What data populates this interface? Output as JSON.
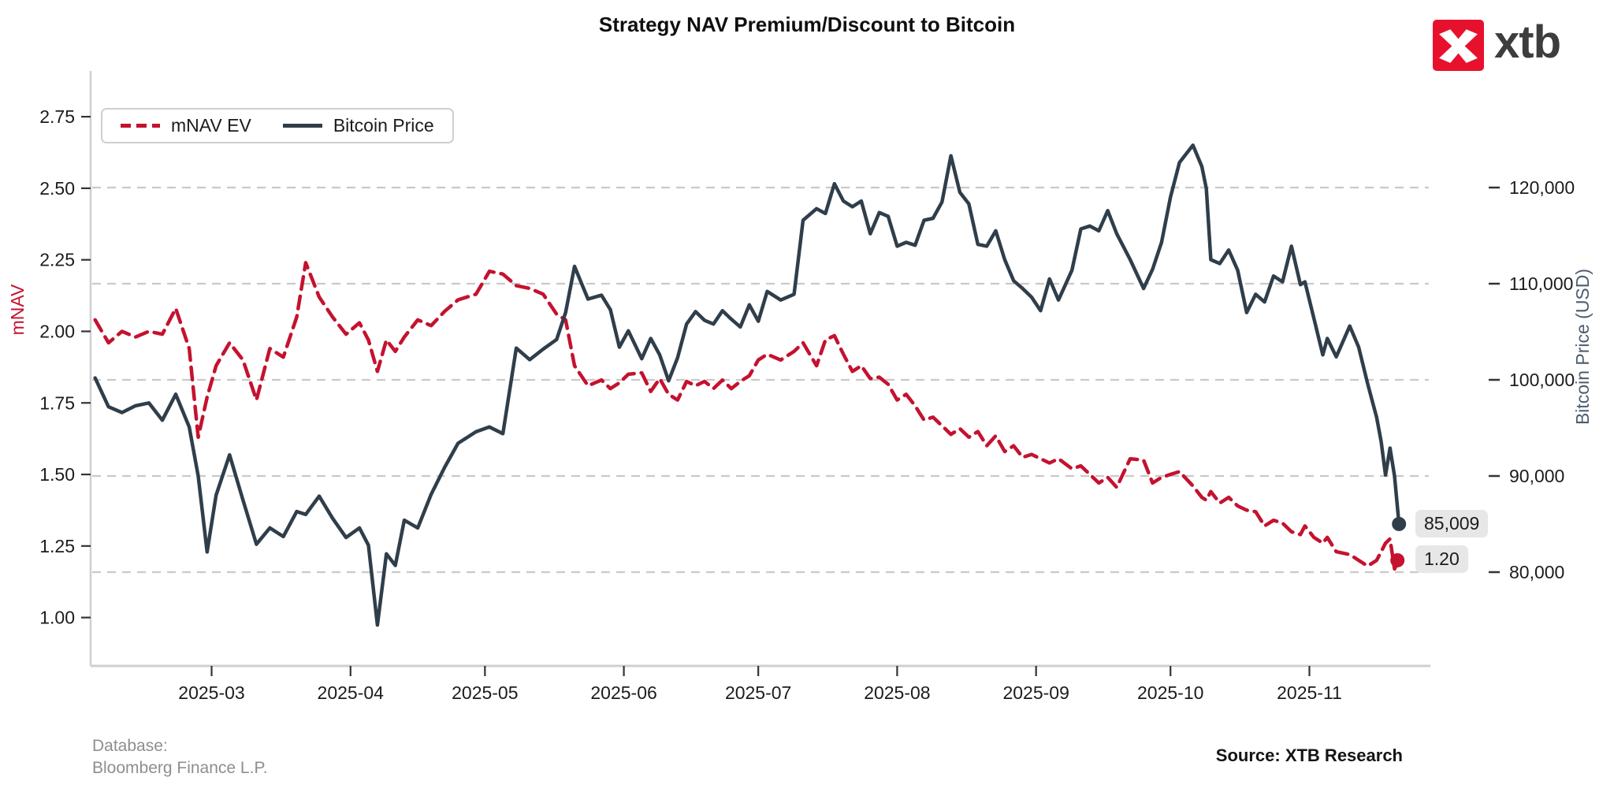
{
  "title": "Strategy NAV Premium/Discount to Bitcoin",
  "logo": {
    "text": "xtb",
    "square_color": "#e8112d",
    "text_color": "#3d3d3d"
  },
  "legend": {
    "mnav_label": "mNAV EV",
    "btc_label": "Bitcoin Price"
  },
  "annotations": {
    "btc_end_label": "85,009",
    "mnav_end_label": "1.20"
  },
  "footer": {
    "database_line1": "Database:",
    "database_line2": "Bloomberg Finance L.P.",
    "source": "Source: XTB Research"
  },
  "colors": {
    "mnav_line": "#c4122f",
    "btc_line": "#2f3e4a",
    "gridline": "#c9c9c9",
    "spine": "#cfcfcf",
    "tick_text": "#1c1c1c",
    "right_axis_title": "#4b5d6e",
    "annotation_bg": "#e7e7e7"
  },
  "chart_data": {
    "type": "line",
    "title": "Strategy NAV Premium/Discount to Bitcoin",
    "grid": "horizontal-dashed",
    "legend_position": "upper-left",
    "left_axis": {
      "title": "mNAV",
      "tick_values": [
        2.75,
        2.5,
        2.25,
        2.0,
        1.75,
        1.5,
        1.25,
        1.0
      ],
      "tick_labels": [
        "2.75",
        "2.50",
        "2.25",
        "2.00",
        "1.75",
        "1.50",
        "1.25",
        "1.00"
      ],
      "range": [
        0.831,
        2.91
      ]
    },
    "right_axis": {
      "title": "Bitcoin Price (USD)",
      "tick_values": [
        120000,
        110000,
        100000,
        90000,
        80000
      ],
      "tick_labels": [
        "120,000",
        "110,000",
        "100,000",
        "90,000",
        "80,000"
      ],
      "range": [
        70246,
        132131
      ]
    },
    "x_axis": {
      "tick_dates": [
        "2025-03-01",
        "2025-04-01",
        "2025-05-01",
        "2025-06-01",
        "2025-07-01",
        "2025-08-01",
        "2025-09-01",
        "2025-10-01",
        "2025-11-01"
      ],
      "tick_labels": [
        "2025-03",
        "2025-04",
        "2025-05",
        "2025-06",
        "2025-07",
        "2025-08",
        "2025-09",
        "2025-10",
        "2025-11"
      ],
      "range": [
        "2025-02-02",
        "2025-11-28"
      ]
    },
    "series": [
      {
        "name": "mNAV EV",
        "axis": "left",
        "style": "dashed",
        "color": "#c4122f",
        "end_value": 1.2
      },
      {
        "name": "Bitcoin Price",
        "axis": "right",
        "style": "solid",
        "color": "#2f3e4a",
        "end_value": 85009
      }
    ],
    "points": [
      [
        "2025-02-03",
        2.04,
        100200
      ],
      [
        "2025-02-06",
        1.96,
        97200
      ],
      [
        "2025-02-09",
        2.0,
        96600
      ],
      [
        "2025-02-12",
        1.98,
        97300
      ],
      [
        "2025-02-15",
        2.0,
        97600
      ],
      [
        "2025-02-18",
        1.99,
        95800
      ],
      [
        "2025-02-21",
        2.08,
        98500
      ],
      [
        "2025-02-24",
        1.94,
        95100
      ],
      [
        "2025-02-26",
        1.63,
        90000
      ],
      [
        "2025-02-28",
        1.77,
        82100
      ],
      [
        "2025-03-02",
        1.88,
        88000
      ],
      [
        "2025-03-05",
        1.96,
        92200
      ],
      [
        "2025-03-08",
        1.9,
        87500
      ],
      [
        "2025-03-11",
        1.76,
        82900
      ],
      [
        "2025-03-14",
        1.94,
        84600
      ],
      [
        "2025-03-17",
        1.91,
        83700
      ],
      [
        "2025-03-20",
        2.05,
        86300
      ],
      [
        "2025-03-22",
        2.24,
        86000
      ],
      [
        "2025-03-25",
        2.12,
        87900
      ],
      [
        "2025-03-28",
        2.05,
        85600
      ],
      [
        "2025-03-31",
        1.99,
        83600
      ],
      [
        "2025-04-03",
        2.03,
        84600
      ],
      [
        "2025-04-05",
        1.97,
        82800
      ],
      [
        "2025-04-07",
        1.86,
        74500
      ],
      [
        "2025-04-09",
        1.97,
        81900
      ],
      [
        "2025-04-11",
        1.93,
        80700
      ],
      [
        "2025-04-13",
        1.98,
        85400
      ],
      [
        "2025-04-16",
        2.04,
        84600
      ],
      [
        "2025-04-19",
        2.02,
        88100
      ],
      [
        "2025-04-22",
        2.07,
        90900
      ],
      [
        "2025-04-25",
        2.11,
        93400
      ],
      [
        "2025-04-29",
        2.13,
        94600
      ],
      [
        "2025-05-02",
        2.21,
        95100
      ],
      [
        "2025-05-05",
        2.2,
        94400
      ],
      [
        "2025-05-08",
        2.16,
        103300
      ],
      [
        "2025-05-11",
        2.15,
        102100
      ],
      [
        "2025-05-14",
        2.13,
        103200
      ],
      [
        "2025-05-17",
        2.06,
        104200
      ],
      [
        "2025-05-19",
        2.04,
        107000
      ],
      [
        "2025-05-21",
        1.88,
        111800
      ],
      [
        "2025-05-24",
        1.81,
        108400
      ],
      [
        "2025-05-27",
        1.83,
        108800
      ],
      [
        "2025-05-29",
        1.8,
        107300
      ],
      [
        "2025-05-31",
        1.82,
        103400
      ],
      [
        "2025-06-02",
        1.85,
        105100
      ],
      [
        "2025-06-05",
        1.855,
        102200
      ],
      [
        "2025-06-07",
        1.79,
        104300
      ],
      [
        "2025-06-09",
        1.835,
        102600
      ],
      [
        "2025-06-11",
        1.78,
        99900
      ],
      [
        "2025-06-13",
        1.76,
        102300
      ],
      [
        "2025-06-15",
        1.825,
        105800
      ],
      [
        "2025-06-17",
        1.81,
        107100
      ],
      [
        "2025-06-19",
        1.825,
        106200
      ],
      [
        "2025-06-21",
        1.8,
        105800
      ],
      [
        "2025-06-23",
        1.83,
        107200
      ],
      [
        "2025-06-25",
        1.8,
        106300
      ],
      [
        "2025-06-27",
        1.825,
        105500
      ],
      [
        "2025-06-29",
        1.845,
        107800
      ],
      [
        "2025-07-01",
        1.9,
        106100
      ],
      [
        "2025-07-03",
        1.92,
        109200
      ],
      [
        "2025-07-06",
        1.9,
        108300
      ],
      [
        "2025-07-09",
        1.93,
        108900
      ],
      [
        "2025-07-11",
        1.96,
        116600
      ],
      [
        "2025-07-14",
        1.88,
        117800
      ],
      [
        "2025-07-16",
        1.97,
        117300
      ],
      [
        "2025-07-18",
        1.985,
        120400
      ],
      [
        "2025-07-20",
        1.92,
        118600
      ],
      [
        "2025-07-22",
        1.86,
        118000
      ],
      [
        "2025-07-24",
        1.88,
        118600
      ],
      [
        "2025-07-26",
        1.835,
        115200
      ],
      [
        "2025-07-28",
        1.84,
        117400
      ],
      [
        "2025-07-30",
        1.815,
        117000
      ],
      [
        "2025-08-01",
        1.76,
        113900
      ],
      [
        "2025-08-03",
        1.78,
        114300
      ],
      [
        "2025-08-05",
        1.74,
        114000
      ],
      [
        "2025-08-07",
        1.69,
        116600
      ],
      [
        "2025-08-09",
        1.7,
        116800
      ],
      [
        "2025-08-11",
        1.67,
        118500
      ],
      [
        "2025-08-13",
        1.64,
        123300
      ],
      [
        "2025-08-15",
        1.66,
        119500
      ],
      [
        "2025-08-17",
        1.63,
        118300
      ],
      [
        "2025-08-19",
        1.65,
        114100
      ],
      [
        "2025-08-21",
        1.6,
        113900
      ],
      [
        "2025-08-23",
        1.635,
        115500
      ],
      [
        "2025-08-25",
        1.58,
        112500
      ],
      [
        "2025-08-27",
        1.6,
        110300
      ],
      [
        "2025-08-29",
        1.56,
        109500
      ],
      [
        "2025-08-31",
        1.57,
        108600
      ],
      [
        "2025-09-02",
        1.555,
        107200
      ],
      [
        "2025-09-04",
        1.54,
        110500
      ],
      [
        "2025-09-06",
        1.555,
        108300
      ],
      [
        "2025-09-09",
        1.52,
        111400
      ],
      [
        "2025-09-11",
        1.53,
        115700
      ],
      [
        "2025-09-13",
        1.5,
        116000
      ],
      [
        "2025-09-15",
        1.47,
        115500
      ],
      [
        "2025-09-17",
        1.49,
        117600
      ],
      [
        "2025-09-19",
        1.455,
        115200
      ],
      [
        "2025-09-22",
        1.555,
        112500
      ],
      [
        "2025-09-25",
        1.55,
        109500
      ],
      [
        "2025-09-27",
        1.47,
        111500
      ],
      [
        "2025-09-29",
        1.49,
        114300
      ],
      [
        "2025-10-01",
        1.5,
        119000
      ],
      [
        "2025-10-03",
        1.51,
        122600
      ],
      [
        "2025-10-06",
        1.46,
        124400
      ],
      [
        "2025-10-08",
        1.42,
        122200
      ],
      [
        "2025-10-09",
        1.41,
        119900
      ],
      [
        "2025-10-10",
        1.44,
        112500
      ],
      [
        "2025-10-12",
        1.4,
        112100
      ],
      [
        "2025-10-14",
        1.42,
        113500
      ],
      [
        "2025-10-16",
        1.39,
        111400
      ],
      [
        "2025-10-18",
        1.375,
        107000
      ],
      [
        "2025-10-20",
        1.37,
        108900
      ],
      [
        "2025-10-22",
        1.32,
        108100
      ],
      [
        "2025-10-24",
        1.34,
        110800
      ],
      [
        "2025-10-26",
        1.33,
        110200
      ],
      [
        "2025-10-28",
        1.3,
        113900
      ],
      [
        "2025-10-30",
        1.29,
        109900
      ],
      [
        "2025-10-31",
        1.32,
        110200
      ],
      [
        "2025-11-02",
        1.28,
        106400
      ],
      [
        "2025-11-04",
        1.26,
        102600
      ],
      [
        "2025-11-05",
        1.28,
        104300
      ],
      [
        "2025-11-07",
        1.23,
        102400
      ],
      [
        "2025-11-10",
        1.22,
        105600
      ],
      [
        "2025-11-12",
        1.2,
        103400
      ],
      [
        "2025-11-14",
        1.18,
        99600
      ],
      [
        "2025-11-16",
        1.2,
        96100
      ],
      [
        "2025-11-17",
        1.23,
        93600
      ],
      [
        "2025-11-18",
        1.26,
        90100
      ],
      [
        "2025-11-19",
        1.275,
        92900
      ],
      [
        "2025-11-20",
        1.17,
        90000
      ],
      [
        "2025-11-21",
        1.2,
        85009
      ]
    ]
  }
}
